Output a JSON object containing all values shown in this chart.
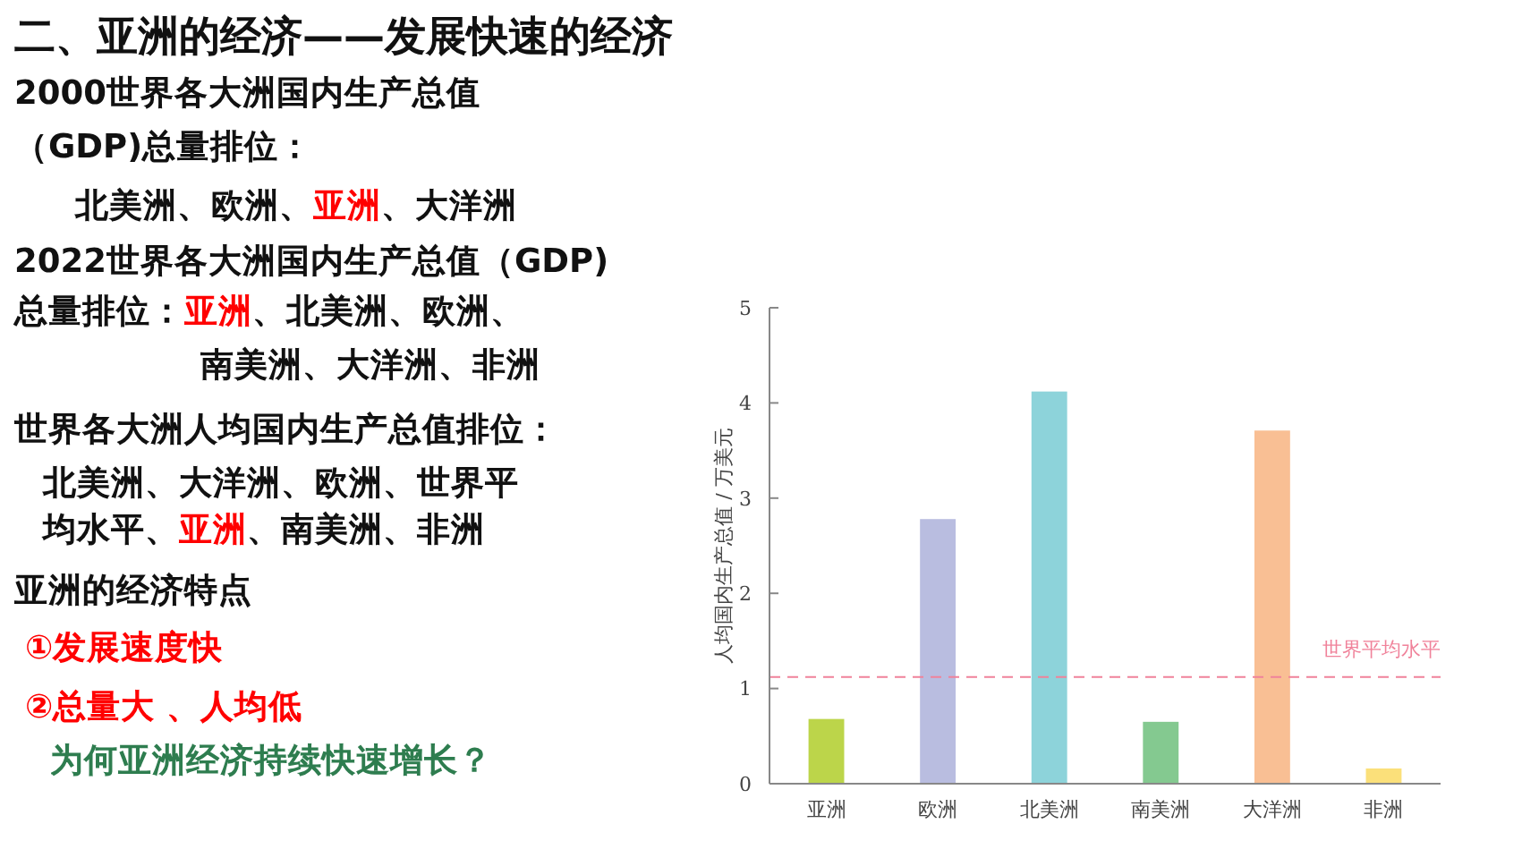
{
  "chart_data": {
    "type": "bar",
    "title": "二、亚洲的经济——发展快速的经济",
    "ylabel": "人均国内生产总值 / 万美元",
    "categories": [
      "亚洲",
      "欧洲",
      "北美洲",
      "南美洲",
      "大洋洲",
      "非洲"
    ],
    "values": [
      0.68,
      2.78,
      4.12,
      0.65,
      3.71,
      0.16
    ],
    "colors": [
      "#bcd54a",
      "#b9bde0",
      "#8dd3da",
      "#84c990",
      "#f9bf94",
      "#fbe07a"
    ],
    "ylim": [
      0,
      5
    ],
    "yticks": [
      0,
      1,
      2,
      3,
      4,
      5
    ],
    "ref_lines": [
      {
        "axis": "y",
        "value": 1.12,
        "label": "世界平均水平",
        "color": "#f0829a",
        "line_style": "dashed"
      }
    ],
    "annotations": [
      "2000世界各大洲国内生产总值",
      "（GDP)总量排位：",
      "北美洲、欧洲、",
      "亚洲",
      "、大洋洲",
      "2022世界各大洲国内生产总值（GDP)",
      "总量排位：",
      "亚洲",
      "、北美洲、欧洲、",
      "南美洲、大洋洲、非洲",
      "世界各大洲人均国内生产总值排位：",
      "北美洲、大洋洲、欧洲、世界平",
      "均水平、",
      "亚洲",
      "、南美洲、非洲",
      "亚洲的经济特点",
      "①发展速度快",
      "②总量大 、人均低",
      "为何亚洲经济持续快速增长？"
    ]
  }
}
